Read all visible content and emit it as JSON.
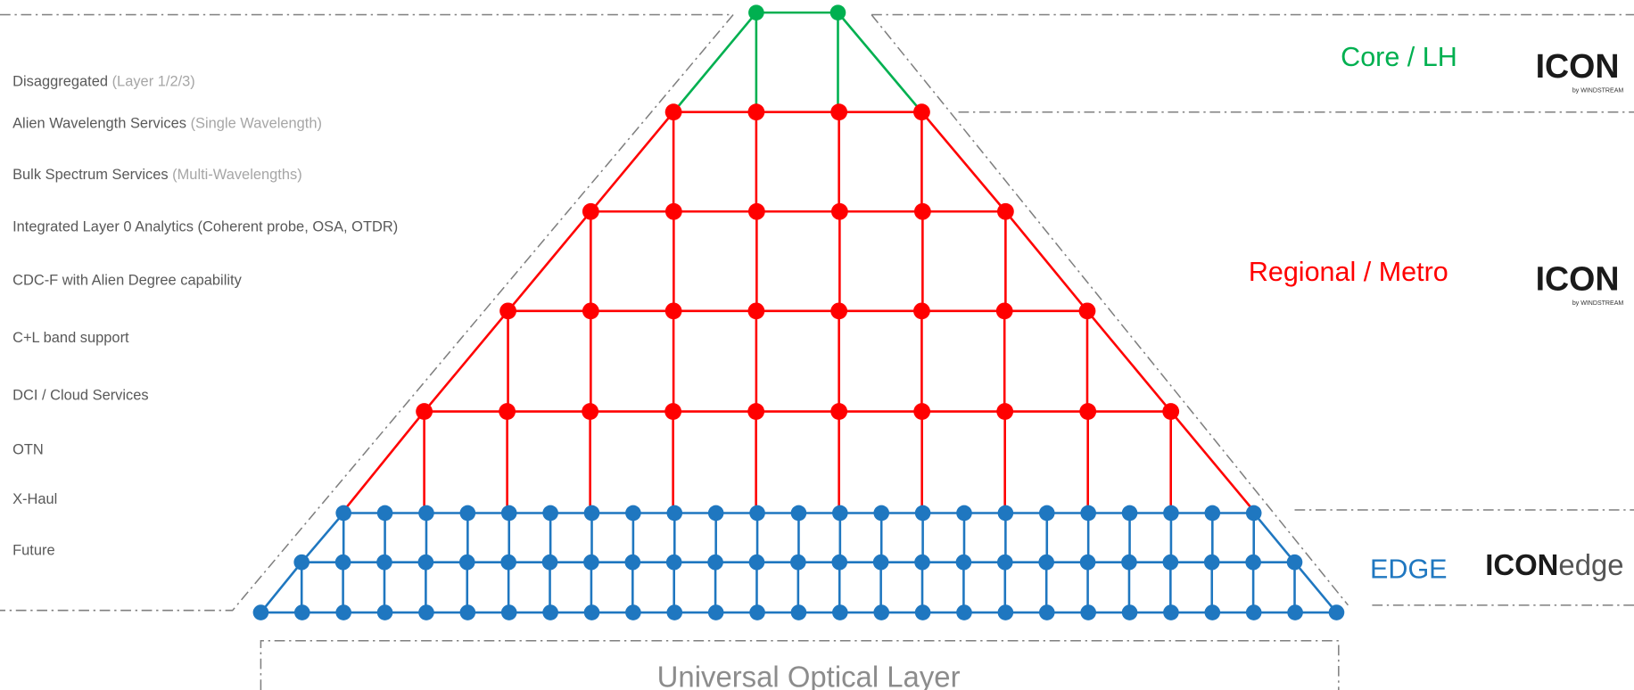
{
  "features": [
    {
      "text": "Disaggregated",
      "note": "(Layer 1/2/3)"
    },
    {
      "text": "Alien Wavelength Services",
      "note": "(Single Wavelength)"
    },
    {
      "text": "Bulk Spectrum Services",
      "note": "(Multi-Wavelengths)"
    },
    {
      "text": "Integrated Layer 0 Analytics (Coherent probe, OSA, OTDR)"
    },
    {
      "text": "CDC-F with Alien Degree capability"
    },
    {
      "text": "C+L band support"
    },
    {
      "text": "DCI / Cloud Services"
    },
    {
      "text": "OTN"
    },
    {
      "text": "X-Haul"
    },
    {
      "text": "Future"
    }
  ],
  "tiers": [
    {
      "label": "Core / LH"
    },
    {
      "label": "Regional / Metro"
    },
    {
      "label": "EDGE"
    }
  ],
  "logos": [
    {
      "brand": "ICON",
      "byline": "by WINDSTREAM"
    },
    {
      "brand": "ICON",
      "byline": "by WINDSTREAM"
    },
    {
      "brand": "ICON",
      "suffix": "edge"
    }
  ],
  "footer": "Universal Optical Layer"
}
